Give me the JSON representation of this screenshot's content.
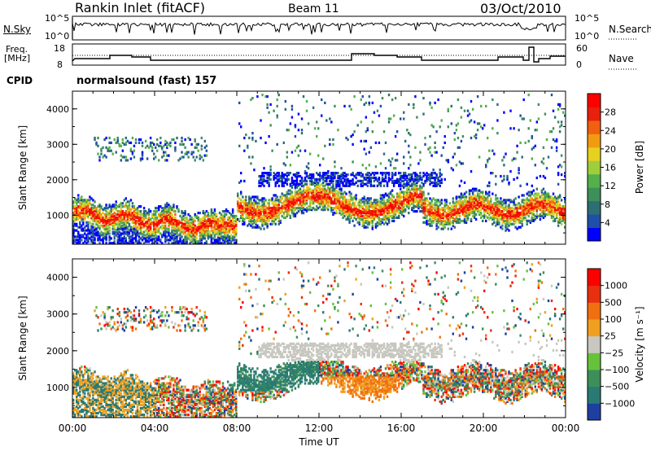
{
  "header": {
    "station": "Rankin Inlet (fitACF)",
    "beam": "Beam 11",
    "date": "03/Oct/2010"
  },
  "noise_panel": {
    "left_label": "N.Sky",
    "left_ticks": [
      "10^5",
      "10^0"
    ],
    "right_ticks": [
      "10^5",
      "10^0"
    ],
    "right_label": "N.Search"
  },
  "freq_panel": {
    "left_label_line1": "Freq.",
    "left_label_line2": "[MHz]",
    "left_ticks": [
      "18",
      "8"
    ],
    "right_ticks": [
      "60",
      "0"
    ],
    "right_label": "Nave"
  },
  "cpid": {
    "label": "CPID",
    "value": "normalsound (fast) 157"
  },
  "chart_data": [
    {
      "type": "heatmap",
      "title": "",
      "ylabel": "Slant Range [km]",
      "xlabel": "",
      "ylim": [
        180,
        4500
      ],
      "y_ticks": [
        "4000",
        "3000",
        "2000",
        "1000"
      ],
      "y_tick_values": [
        4000,
        3000,
        2000,
        1000
      ],
      "colorbar_label": "Power [dB]",
      "colorbar_ticks": [
        "28",
        "24",
        "20",
        "16",
        "12",
        "8",
        "4"
      ],
      "colorbar_colors": [
        "#0000ff",
        "#1f4fa8",
        "#2c6e74",
        "#3f8f5a",
        "#53b04a",
        "#9fce3a",
        "#e6d11e",
        "#f29a12",
        "#f06010",
        "#e8200c",
        "#ff0000"
      ]
    },
    {
      "type": "heatmap",
      "title": "",
      "ylabel": "Slant Range [km]",
      "xlabel": "Time UT",
      "ylim": [
        180,
        4500
      ],
      "x_ticks": [
        "00:00",
        "04:00",
        "08:00",
        "12:00",
        "16:00",
        "20:00",
        "00:00"
      ],
      "y_ticks": [
        "4000",
        "3000",
        "2000",
        "1000"
      ],
      "y_tick_values": [
        4000,
        3000,
        2000,
        1000
      ],
      "colorbar_label": "Velocity [m s⁻¹]",
      "colorbar_ticks": [
        "1000",
        "500",
        "100",
        "25",
        "−25",
        "−100",
        "−500",
        "−1000"
      ],
      "colorbar_colors": [
        "#1e3fa0",
        "#2a7a74",
        "#3d8f5a",
        "#66c23a",
        "#c8c8c0",
        "#f0a020",
        "#f07010",
        "#e83010",
        "#ff0000"
      ]
    }
  ]
}
